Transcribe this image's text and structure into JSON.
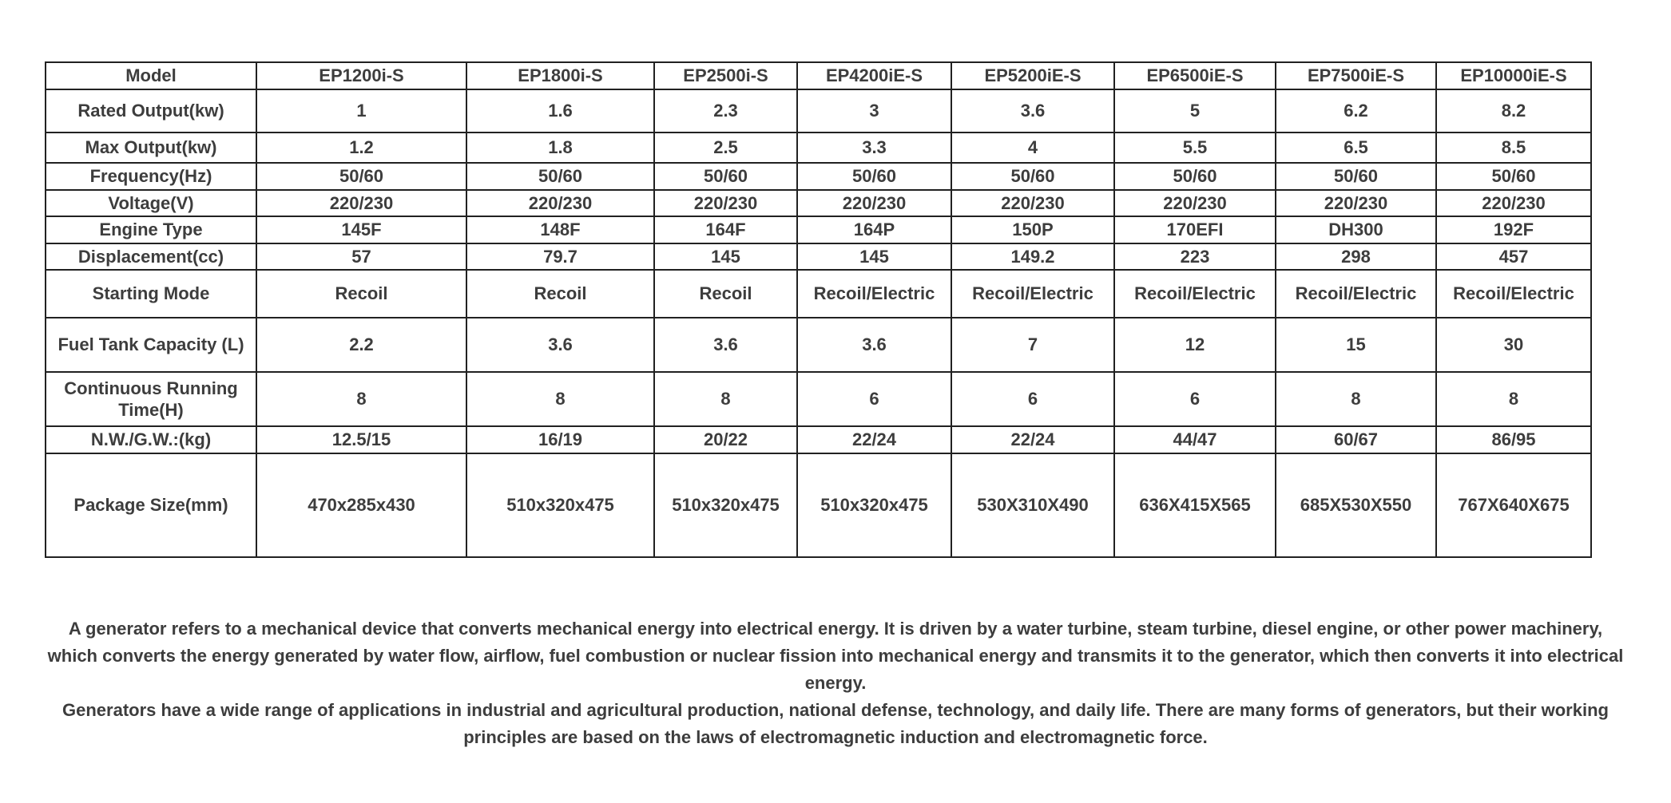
{
  "table": {
    "columns": [
      "Model",
      "EP1200i-S",
      "EP1800i-S",
      "EP2500i-S",
      "EP4200iE-S",
      "EP5200iE-S",
      "EP6500iE-S",
      "EP7500iE-S",
      "EP10000iE-S"
    ],
    "rows": [
      {
        "label": "Rated Output(kw)",
        "values": [
          "1",
          "1.6",
          "2.3",
          "3",
          "3.6",
          "5",
          "6.2",
          "8.2"
        ]
      },
      {
        "label": "Max Output(kw)",
        "values": [
          "1.2",
          "1.8",
          "2.5",
          "3.3",
          "4",
          "5.5",
          "6.5",
          "8.5"
        ]
      },
      {
        "label": "Frequency(Hz)",
        "values": [
          "50/60",
          "50/60",
          "50/60",
          "50/60",
          "50/60",
          "50/60",
          "50/60",
          "50/60"
        ]
      },
      {
        "label": "Voltage(V)",
        "values": [
          "220/230",
          "220/230",
          "220/230",
          "220/230",
          "220/230",
          "220/230",
          "220/230",
          "220/230"
        ]
      },
      {
        "label": "Engine Type",
        "values": [
          "145F",
          "148F",
          "164F",
          "164P",
          "150P",
          "170EFI",
          "DH300",
          "192F"
        ]
      },
      {
        "label": "Displacement(cc)",
        "values": [
          "57",
          "79.7",
          "145",
          "145",
          "149.2",
          "223",
          "298",
          "457"
        ]
      },
      {
        "label": "Starting Mode",
        "values": [
          "Recoil",
          "Recoil",
          "Recoil",
          "Recoil/Electric",
          "Recoil/Electric",
          "Recoil/Electric",
          "Recoil/Electric",
          "Recoil/Electric"
        ]
      },
      {
        "label": "Fuel Tank Capacity (L)",
        "values": [
          "2.2",
          "3.6",
          "3.6",
          "3.6",
          "7",
          "12",
          "15",
          "30"
        ]
      },
      {
        "label": "Continuous Running Time(H)",
        "values": [
          "8",
          "8",
          "8",
          "6",
          "6",
          "6",
          "8",
          "8"
        ]
      },
      {
        "label": "N.W./G.W.:(kg)",
        "values": [
          "12.5/15",
          "16/19",
          "20/22",
          "22/24",
          "22/24",
          "44/47",
          "60/67",
          "86/95"
        ]
      },
      {
        "label": "Package Size(mm)",
        "values": [
          "470x285x430",
          "510x320x475",
          "510x320x475",
          "510x320x475",
          "530X310X490",
          "636X415X565",
          "685X530X550",
          "767X640X675"
        ]
      }
    ]
  },
  "description": {
    "paragraph1": "A generator refers to a mechanical device that converts mechanical energy into electrical energy. It is driven by a water turbine, steam turbine, diesel engine, or other power machinery, which converts the energy generated by water flow, airflow, fuel combustion or nuclear fission into mechanical energy and transmits it to the generator, which then converts it into electrical energy.",
    "paragraph2": "Generators have a wide range of applications in industrial and agricultural production, national defense, technology, and daily life. There are many forms of generators, but their working principles are based on the laws of electromagnetic induction and electromagnetic force."
  },
  "colors": {
    "text": "#3d3d3d",
    "border": "#212121",
    "background": "#ffffff"
  }
}
